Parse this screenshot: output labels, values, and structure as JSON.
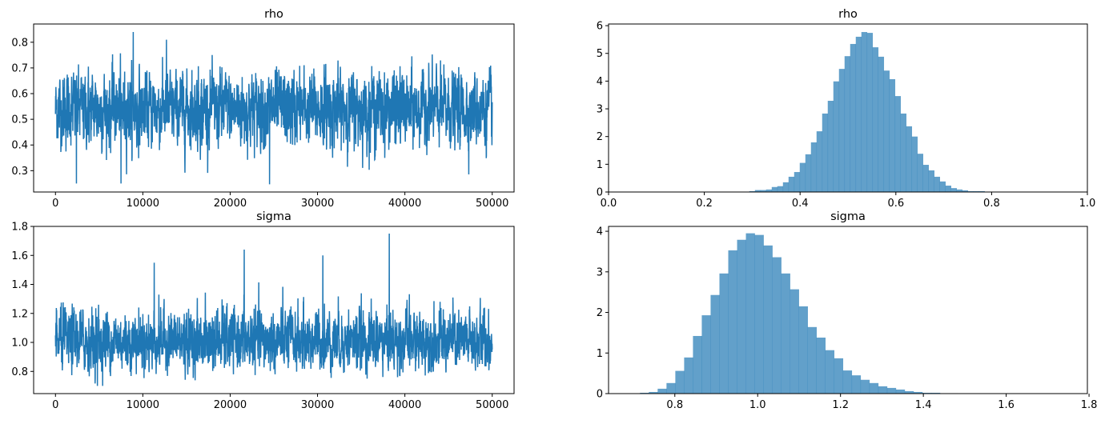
{
  "chart_data": [
    {
      "type": "line",
      "title": "rho",
      "xlim": [
        -2500,
        52500
      ],
      "ylim": [
        0.217,
        0.871
      ],
      "xticks": [
        0,
        10000,
        20000,
        30000,
        40000,
        50000
      ],
      "xtick_labels": [
        "0",
        "10000",
        "20000",
        "30000",
        "40000",
        "50000"
      ],
      "yticks": [
        0.3,
        0.4,
        0.5,
        0.6,
        0.7,
        0.8
      ],
      "ytick_labels": [
        "0.3",
        "0.4",
        "0.5",
        "0.6",
        "0.7",
        "0.8"
      ],
      "grid": false,
      "color": "#1f77b4",
      "trace": {
        "n_samples": 50000,
        "mean": 0.54,
        "sd": 0.07
      },
      "extremes": [
        [
          8900,
          0.84
        ],
        [
          12700,
          0.81
        ],
        [
          2400,
          0.25
        ],
        [
          7500,
          0.25
        ],
        [
          24500,
          0.245
        ]
      ]
    },
    {
      "type": "bar",
      "title": "rho",
      "xlim": [
        0.0,
        1.0
      ],
      "ylim": [
        0,
        6.06
      ],
      "xticks": [
        0.0,
        0.2,
        0.4,
        0.6,
        0.8,
        1.0
      ],
      "xtick_labels": [
        "0.0",
        "0.2",
        "0.4",
        "0.6",
        "0.8",
        "1.0"
      ],
      "yticks": [
        0,
        1,
        2,
        3,
        4,
        5,
        6
      ],
      "ytick_labels": [
        "0",
        "1",
        "2",
        "3",
        "4",
        "5",
        "6"
      ],
      "grid": false,
      "color": "#1f77b4",
      "alpha": 0.7,
      "bin_start": 0.294,
      "bin_width": 0.0117,
      "values": [
        0.03,
        0.07,
        0.07,
        0.09,
        0.18,
        0.21,
        0.35,
        0.55,
        0.72,
        1.05,
        1.36,
        1.79,
        2.19,
        2.83,
        3.29,
        3.99,
        4.44,
        4.9,
        5.34,
        5.6,
        5.77,
        5.74,
        5.22,
        4.88,
        4.38,
        4.07,
        3.46,
        2.83,
        2.37,
        2.0,
        1.38,
        0.98,
        0.78,
        0.55,
        0.38,
        0.23,
        0.14,
        0.09,
        0.06,
        0.03,
        0.03,
        0.03,
        0.01,
        0.01
      ]
    },
    {
      "type": "line",
      "title": "sigma",
      "xlim": [
        -2500,
        52500
      ],
      "ylim": [
        0.647,
        1.8
      ],
      "xticks": [
        0,
        10000,
        20000,
        30000,
        40000,
        50000
      ],
      "xtick_labels": [
        "0",
        "10000",
        "20000",
        "30000",
        "40000",
        "50000"
      ],
      "yticks": [
        0.8,
        1.0,
        1.2,
        1.4,
        1.6,
        1.8
      ],
      "ytick_labels": [
        "0.8",
        "1.0",
        "1.2",
        "1.4",
        "1.6",
        "1.8"
      ],
      "grid": false,
      "color": "#1f77b4",
      "trace": {
        "n_samples": 50000,
        "mean": 1.01,
        "sd": 0.1
      },
      "extremes": [
        [
          38200,
          1.75
        ],
        [
          21600,
          1.64
        ],
        [
          30600,
          1.6
        ],
        [
          11300,
          1.55
        ],
        [
          4800,
          0.7
        ],
        [
          5400,
          0.7
        ]
      ]
    },
    {
      "type": "bar",
      "title": "sigma",
      "xlim": [
        0.64,
        1.796
      ],
      "ylim": [
        0,
        4.12
      ],
      "xticks": [
        0.8,
        1.0,
        1.2,
        1.4,
        1.6,
        1.8
      ],
      "xtick_labels": [
        "0.8",
        "1.0",
        "1.2",
        "1.4",
        "1.6",
        "1.8"
      ],
      "yticks": [
        0,
        1,
        2,
        3,
        4
      ],
      "ytick_labels": [
        "0",
        "1",
        "2",
        "3",
        "4"
      ],
      "grid": false,
      "color": "#1f77b4",
      "alpha": 0.7,
      "bin_start": 0.716,
      "bin_width": 0.0213,
      "values": [
        0.02,
        0.04,
        0.12,
        0.26,
        0.56,
        0.89,
        1.42,
        1.93,
        2.43,
        2.96,
        3.53,
        3.79,
        3.95,
        3.91,
        3.65,
        3.36,
        2.96,
        2.57,
        2.15,
        1.64,
        1.38,
        1.07,
        0.87,
        0.57,
        0.45,
        0.34,
        0.26,
        0.18,
        0.14,
        0.1,
        0.06,
        0.04,
        0.02,
        0.02,
        0.01,
        0.01,
        0.005
      ]
    }
  ]
}
